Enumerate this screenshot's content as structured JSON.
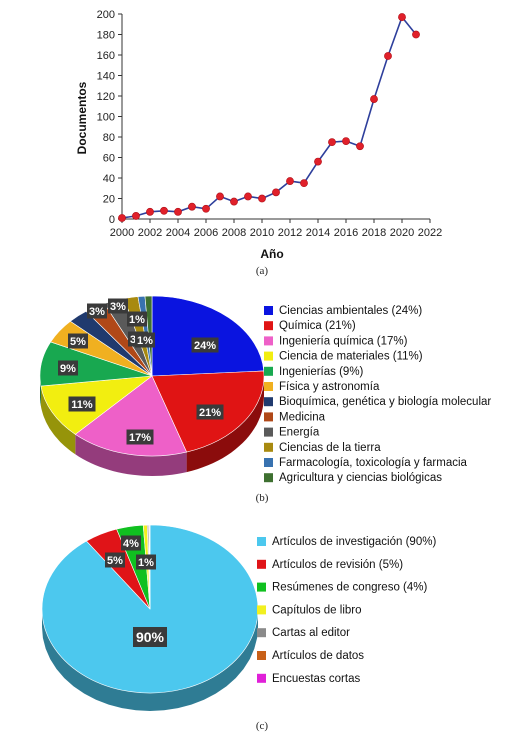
{
  "chart_data": [
    {
      "type": "line",
      "caption": "(a)",
      "xlabel": "Año",
      "ylabel": "Documentos",
      "xlim": [
        2000,
        2022
      ],
      "ylim": [
        0,
        200
      ],
      "x_ticks": [
        2000,
        2002,
        2004,
        2006,
        2008,
        2010,
        2012,
        2014,
        2016,
        2018,
        2020,
        2022
      ],
      "y_ticks": [
        0,
        20,
        40,
        60,
        80,
        100,
        120,
        140,
        160,
        180,
        200
      ],
      "grid": false,
      "line_color": "#2e3f9c",
      "marker_color": "#e0202a",
      "x": [
        2000,
        2001,
        2002,
        2003,
        2004,
        2005,
        2006,
        2007,
        2008,
        2009,
        2010,
        2011,
        2012,
        2013,
        2014,
        2015,
        2016,
        2017,
        2018,
        2019,
        2020,
        2021
      ],
      "y": [
        1,
        3,
        7,
        8,
        7,
        12,
        10,
        22,
        17,
        22,
        20,
        26,
        37,
        35,
        56,
        75,
        76,
        71,
        117,
        159,
        197,
        180
      ]
    },
    {
      "type": "pie",
      "caption": "(b)",
      "legend_position": "right",
      "slices": [
        {
          "label": "Ciencias ambientales (24%)",
          "value": 24,
          "color": "#0a14e0",
          "data_label": "24%"
        },
        {
          "label": "Química (21%)",
          "value": 21,
          "color": "#e01414",
          "data_label": "21%"
        },
        {
          "label": "Ingeniería química (17%)",
          "value": 17,
          "color": "#ee60c8",
          "data_label": "17%"
        },
        {
          "label": "Ciencia de materiales (11%)",
          "value": 11,
          "color": "#f2ee10",
          "data_label": "11%"
        },
        {
          "label": "Ingenierías (9%)",
          "value": 9,
          "color": "#18a850",
          "data_label": "9%"
        },
        {
          "label": "Física y astronomía",
          "value": 5,
          "color": "#f0b020",
          "data_label": "5%"
        },
        {
          "label": "Bioquímica, genética y biología molecular",
          "value": 3,
          "color": "#203a6e",
          "data_label": "3%"
        },
        {
          "label": "Medicina",
          "value": 3,
          "color": "#b04818",
          "data_label": "3%"
        },
        {
          "label": "Energía",
          "value": 3,
          "color": "#5a5a5a",
          "data_label": "3%"
        },
        {
          "label": "Ciencias de la tierra",
          "value": 2,
          "color": "#a88a10",
          "data_label": ""
        },
        {
          "label": "Farmacología, toxicología y farmacia",
          "value": 1,
          "color": "#3872b0",
          "data_label": "1%"
        },
        {
          "label": "Agricultura y ciencias biológicas",
          "value": 1,
          "color": "#3e7030",
          "data_label": "1%"
        }
      ]
    },
    {
      "type": "pie",
      "caption": "(c)",
      "legend_position": "right",
      "slices": [
        {
          "label": "Artículos de investigación (90%)",
          "value": 90,
          "color": "#4cc8ee",
          "data_label": "90%"
        },
        {
          "label": "Artículos de revisión (5%)",
          "value": 5,
          "color": "#e01418",
          "data_label": "5%"
        },
        {
          "label": "Resúmenes de congreso (4%)",
          "value": 4,
          "color": "#10c020",
          "data_label": "4%"
        },
        {
          "label": "Capítulos de libro",
          "value": 0.6,
          "color": "#f2f020",
          "data_label": "1%"
        },
        {
          "label": "Cartas al editor",
          "value": 0.2,
          "color": "#8a8a8a",
          "data_label": ""
        },
        {
          "label": "Artículos de datos",
          "value": 0.1,
          "color": "#c86018",
          "data_label": ""
        },
        {
          "label": "Encuestas cortas",
          "value": 0.1,
          "color": "#e020d8",
          "data_label": ""
        }
      ]
    }
  ]
}
